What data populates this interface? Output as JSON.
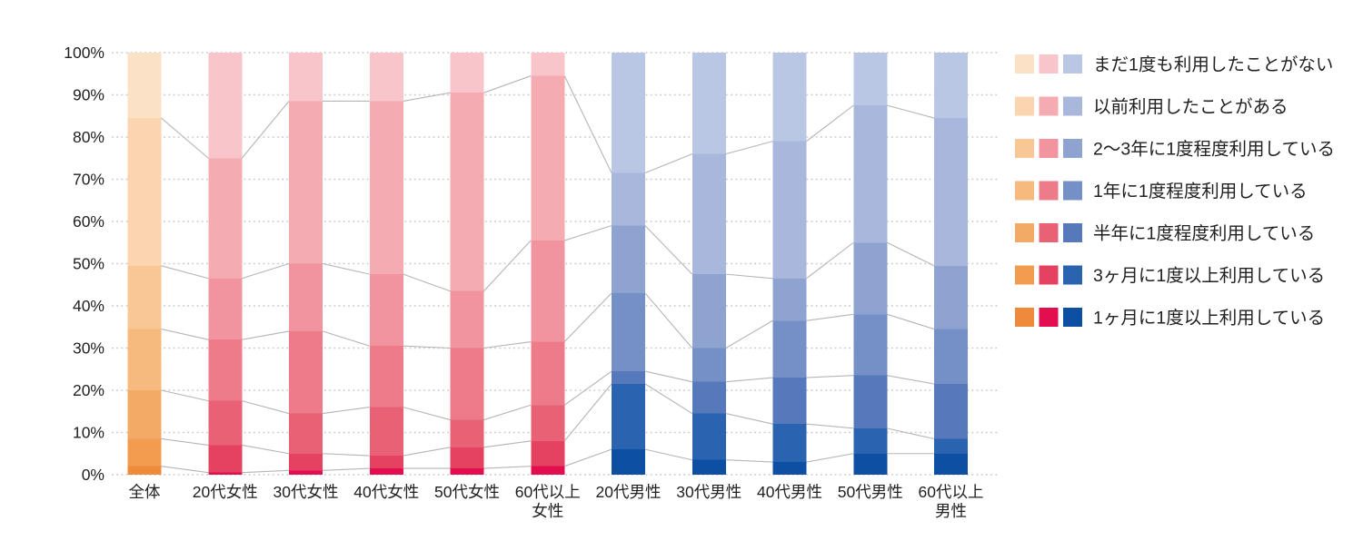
{
  "chart_data": {
    "type": "bar",
    "variant": "100%-stacked-vertical-with-boundary-connectors",
    "title": "",
    "categories": [
      "全体",
      "20代女性",
      "30代女性",
      "40代女性",
      "50代女性",
      "60代以上\n女性",
      "20代男性",
      "30代男性",
      "40代男性",
      "50代男性",
      "60代以上\n男性"
    ],
    "series": [
      {
        "name": "まだ1度も利用したことがない",
        "values": [
          15.5,
          25.0,
          11.5,
          11.5,
          9.5,
          5.5,
          28.5,
          24.0,
          21.0,
          12.5,
          15.5
        ]
      },
      {
        "name": "以前利用したことがある",
        "values": [
          35.0,
          28.5,
          38.5,
          41.0,
          47.0,
          39.0,
          12.5,
          28.5,
          32.5,
          32.5,
          35.0
        ]
      },
      {
        "name": "2〜3年に1度程度利用している",
        "values": [
          15.0,
          14.5,
          16.0,
          17.0,
          13.5,
          24.0,
          16.0,
          17.5,
          10.0,
          17.0,
          15.0
        ]
      },
      {
        "name": "1年に1度程度利用している",
        "values": [
          14.5,
          14.5,
          19.5,
          14.5,
          17.0,
          15.0,
          18.5,
          8.0,
          13.5,
          14.5,
          13.0
        ]
      },
      {
        "name": "半年に1度程度利用している",
        "values": [
          11.5,
          10.5,
          9.5,
          11.5,
          6.5,
          8.5,
          3.0,
          7.5,
          11.0,
          12.5,
          13.0
        ]
      },
      {
        "name": "3ヶ月に1度以上利用している",
        "values": [
          6.5,
          6.5,
          4.0,
          3.0,
          5.0,
          6.0,
          15.5,
          11.0,
          9.0,
          6.0,
          3.5
        ]
      },
      {
        "name": "1ヶ月に1度以上利用している",
        "values": [
          2.0,
          0.5,
          1.0,
          1.5,
          1.5,
          2.0,
          6.0,
          3.5,
          3.0,
          5.0,
          5.0
        ]
      }
    ],
    "stack_note": "series[0] is the lightest segment at the TOP of each bar, series[6] the darkest at the BOTTOM; every bar totals 100%",
    "ylabel": "",
    "xlabel": "",
    "ylim": [
      0,
      100
    ],
    "yticks": [
      "0%",
      "10%",
      "20%",
      "30%",
      "40%",
      "50%",
      "60%",
      "70%",
      "80%",
      "90%",
      "100%"
    ],
    "grid": "horizontal-dotted",
    "legend_position": "right",
    "palettes": {
      "orange": [
        "#fbe1c6",
        "#fad5af",
        "#f8c795",
        "#f6b97e",
        "#f3aa66",
        "#f19c4f",
        "#ee8a39"
      ],
      "pink": [
        "#f8c6ca",
        "#f4abb2",
        "#f1949f",
        "#ed7b8a",
        "#e96175",
        "#e54261",
        "#e30e50"
      ],
      "blue": [
        "#bac7e4",
        "#a8b7db",
        "#8fa3d1",
        "#7590c7",
        "#5579bb",
        "#2a63b0",
        "#0d4fa3"
      ]
    },
    "category_palette_map": [
      "orange",
      "pink",
      "pink",
      "pink",
      "pink",
      "pink",
      "blue",
      "blue",
      "blue",
      "blue",
      "blue"
    ],
    "colors": {
      "gridline": "#c9c9c9",
      "connector_line": "#b5b5b5",
      "tick_text": "#212121",
      "legend_text": "#212121",
      "background": "#ffffff"
    }
  },
  "legend": {
    "items": [
      {
        "label": "まだ1度も利用したことがない"
      },
      {
        "label": "以前利用したことがある"
      },
      {
        "label": "2〜3年に1度程度利用している"
      },
      {
        "label": "1年に1度程度利用している"
      },
      {
        "label": "半年に1度程度利用している"
      },
      {
        "label": "3ヶ月に1度以上利用している"
      },
      {
        "label": "1ヶ月に1度以上利用している"
      }
    ],
    "swatch_hues_per_item": [
      "orange",
      "pink",
      "blue"
    ]
  }
}
